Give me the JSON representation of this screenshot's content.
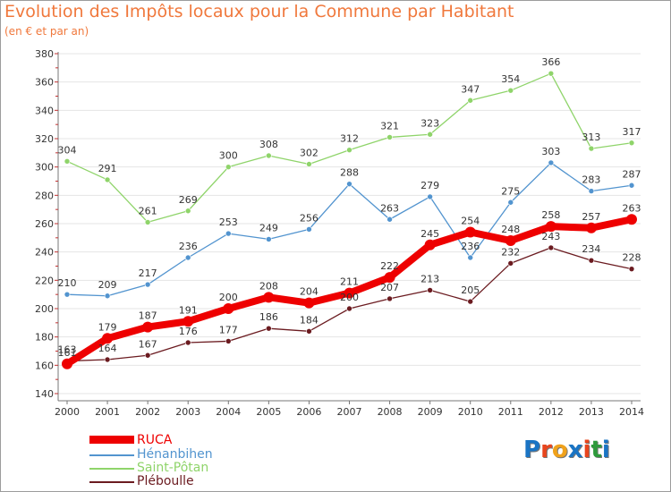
{
  "header": {
    "title": "Evolution des Impôts locaux pour la Commune par Habitant",
    "subtitle": "(en € et par an)"
  },
  "logo": {
    "text": "Proxiti",
    "letter_colors": [
      "#1a74c4",
      "#e8451e",
      "#f0a21c",
      "#1a74c4",
      "#e8451e",
      "#2e9a3c",
      "#1a74c4"
    ]
  },
  "colors": {
    "title": "#f0783c",
    "axis": "#777777",
    "grid": "#e5e5e5"
  },
  "chart_data": {
    "type": "line",
    "title": "Evolution des Impôts locaux pour la Commune par Habitant",
    "subtitle": "(en € et par an)",
    "x": [
      "2000",
      "2001",
      "2002",
      "2003",
      "2004",
      "2005",
      "2006",
      "2007",
      "2008",
      "2009",
      "2010",
      "2011",
      "2012",
      "2013",
      "2014"
    ],
    "ylim": [
      140,
      380
    ],
    "yticks": [
      140,
      160,
      180,
      200,
      220,
      240,
      260,
      280,
      300,
      320,
      340,
      360,
      380
    ],
    "grid": true,
    "legend_position": "bottom-left",
    "series": [
      {
        "name": "RUCA",
        "color": "#ee0000",
        "label_color": "#333333",
        "line_width": 8,
        "marker_radius": 6,
        "values": [
          161,
          179,
          187,
          191,
          200,
          208,
          204,
          211,
          222,
          245,
          254,
          248,
          258,
          257,
          263
        ]
      },
      {
        "name": "Hénanbihen",
        "color": "#5294cf",
        "label_color": "#333333",
        "line_width": 1.3,
        "marker_radius": 3,
        "values": [
          210,
          209,
          217,
          236,
          253,
          249,
          256,
          288,
          263,
          279,
          236,
          275,
          303,
          283,
          287
        ]
      },
      {
        "name": "Saint-Pôtan",
        "color": "#8fd46a",
        "label_color": "#333333",
        "line_width": 1.3,
        "marker_radius": 3,
        "values": [
          304,
          291,
          261,
          269,
          300,
          308,
          302,
          312,
          321,
          323,
          347,
          354,
          366,
          313,
          317
        ]
      },
      {
        "name": "Pléboulle",
        "color": "#6b1b20",
        "label_color": "#333333",
        "line_width": 1.3,
        "marker_radius": 3,
        "values": [
          163,
          164,
          167,
          176,
          177,
          186,
          184,
          200,
          207,
          213,
          205,
          232,
          243,
          234,
          228
        ]
      }
    ]
  }
}
